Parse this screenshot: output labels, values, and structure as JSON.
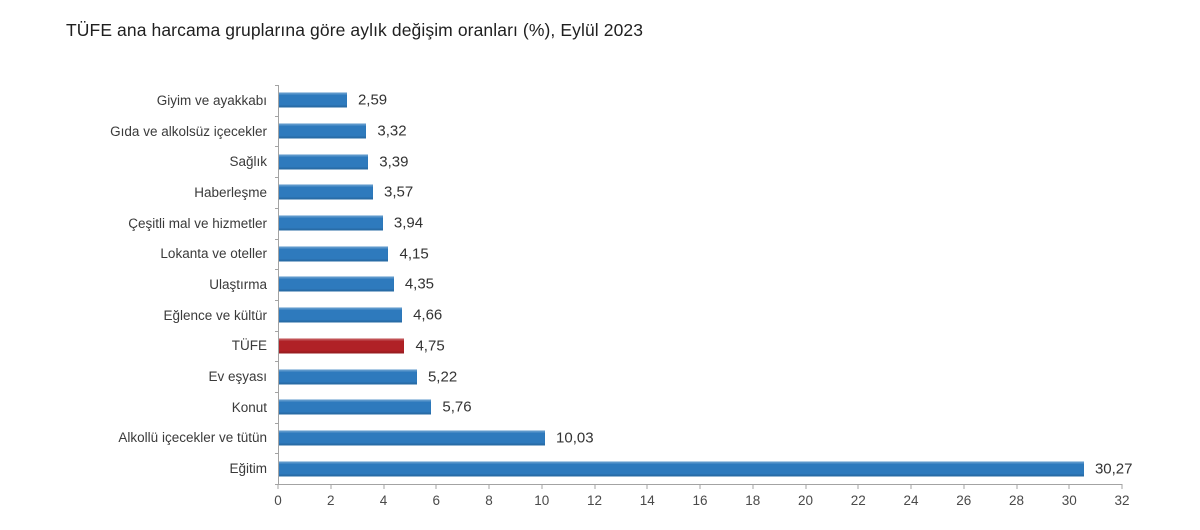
{
  "title": "TÜFE ana harcama gruplarına göre aylık değişim oranları (%), Eylül 2023",
  "chart_data": {
    "type": "bar",
    "orientation": "horizontal",
    "title": "TÜFE ana harcama gruplarına göre aylık değişim oranları (%), Eylül 2023",
    "categories": [
      "Giyim ve ayakkabı",
      "Gıda ve alkolsüz içecekler",
      "Sağlık",
      "Haberleşme",
      "Çeşitli mal ve hizmetler",
      "Lokanta ve oteller",
      "Ulaştırma",
      "Eğlence ve kültür",
      "TÜFE",
      "Ev eşyası",
      "Konut",
      "Alkollü içecekler ve tütün",
      "Eğitim"
    ],
    "values": [
      2.59,
      3.32,
      3.39,
      3.57,
      3.94,
      4.15,
      4.35,
      4.66,
      4.75,
      5.22,
      5.76,
      10.03,
      30.27
    ],
    "value_labels": [
      "2,59",
      "3,32",
      "3,39",
      "3,57",
      "3,94",
      "4,15",
      "4,35",
      "4,66",
      "4,75",
      "5,22",
      "5,76",
      "10,03",
      "30,27"
    ],
    "highlight_category": "TÜFE",
    "colors": {
      "bar": "#2e7abd",
      "highlight_bar": "#b02126",
      "axis": "#a3a3a3",
      "text": "#3a3a3a"
    },
    "xlabel": "",
    "ylabel": "",
    "xlim": [
      0,
      32
    ],
    "x_ticks": [
      0,
      2,
      4,
      6,
      8,
      10,
      12,
      14,
      16,
      18,
      20,
      22,
      24,
      26,
      28,
      30,
      32
    ],
    "grid": false,
    "legend": "none"
  }
}
